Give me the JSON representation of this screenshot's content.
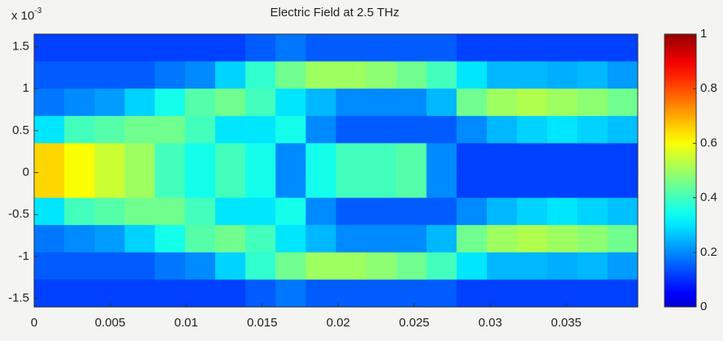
{
  "chart_data": {
    "type": "heatmap",
    "title": "Electric Field at 2.5 THz",
    "y_multiplier": {
      "base": "x 10",
      "exponent": "-3"
    },
    "xlim": [
      0,
      0.0397
    ],
    "xticks": [
      0,
      0.005,
      0.01,
      0.015,
      0.02,
      0.025,
      0.03,
      0.035
    ],
    "ylim": [
      -1.6,
      1.65
    ],
    "yticks": [
      -1.5,
      -1,
      -0.5,
      0,
      0.5,
      1,
      1.5
    ],
    "colormap": "jet",
    "clim": [
      0,
      1
    ],
    "cticks": [
      0,
      0.2,
      0.4,
      0.6,
      0.8,
      1
    ],
    "z_columns": [
      [
        0.12,
        0.15,
        0.18,
        0.3,
        0.65,
        0.65,
        0.3,
        0.18,
        0.15,
        0.12
      ],
      [
        0.12,
        0.15,
        0.2,
        0.4,
        0.6,
        0.6,
        0.4,
        0.2,
        0.15,
        0.12
      ],
      [
        0.12,
        0.15,
        0.22,
        0.42,
        0.55,
        0.55,
        0.42,
        0.22,
        0.15,
        0.12
      ],
      [
        0.12,
        0.15,
        0.28,
        0.45,
        0.5,
        0.5,
        0.45,
        0.28,
        0.15,
        0.12
      ],
      [
        0.12,
        0.18,
        0.35,
        0.45,
        0.4,
        0.4,
        0.45,
        0.35,
        0.18,
        0.12
      ],
      [
        0.12,
        0.2,
        0.42,
        0.4,
        0.35,
        0.35,
        0.4,
        0.42,
        0.2,
        0.12
      ],
      [
        0.12,
        0.28,
        0.45,
        0.3,
        0.4,
        0.4,
        0.3,
        0.45,
        0.28,
        0.12
      ],
      [
        0.15,
        0.38,
        0.4,
        0.3,
        0.35,
        0.35,
        0.3,
        0.4,
        0.38,
        0.15
      ],
      [
        0.18,
        0.45,
        0.3,
        0.35,
        0.2,
        0.2,
        0.35,
        0.3,
        0.45,
        0.18
      ],
      [
        0.15,
        0.5,
        0.25,
        0.2,
        0.35,
        0.35,
        0.2,
        0.25,
        0.5,
        0.15
      ],
      [
        0.15,
        0.5,
        0.2,
        0.15,
        0.4,
        0.4,
        0.15,
        0.2,
        0.5,
        0.15
      ],
      [
        0.15,
        0.48,
        0.2,
        0.15,
        0.4,
        0.4,
        0.15,
        0.2,
        0.48,
        0.15
      ],
      [
        0.15,
        0.45,
        0.2,
        0.15,
        0.42,
        0.42,
        0.15,
        0.2,
        0.45,
        0.15
      ],
      [
        0.15,
        0.4,
        0.25,
        0.15,
        0.2,
        0.2,
        0.15,
        0.25,
        0.4,
        0.15
      ],
      [
        0.12,
        0.3,
        0.45,
        0.2,
        0.12,
        0.12,
        0.2,
        0.45,
        0.3,
        0.12
      ],
      [
        0.12,
        0.25,
        0.5,
        0.25,
        0.12,
        0.12,
        0.25,
        0.5,
        0.25,
        0.12
      ],
      [
        0.12,
        0.25,
        0.52,
        0.28,
        0.12,
        0.12,
        0.28,
        0.52,
        0.25,
        0.12
      ],
      [
        0.12,
        0.24,
        0.5,
        0.3,
        0.12,
        0.12,
        0.3,
        0.5,
        0.24,
        0.12
      ],
      [
        0.12,
        0.25,
        0.48,
        0.28,
        0.12,
        0.12,
        0.28,
        0.48,
        0.25,
        0.12
      ],
      [
        0.12,
        0.22,
        0.45,
        0.26,
        0.12,
        0.12,
        0.26,
        0.45,
        0.22,
        0.12
      ]
    ]
  }
}
